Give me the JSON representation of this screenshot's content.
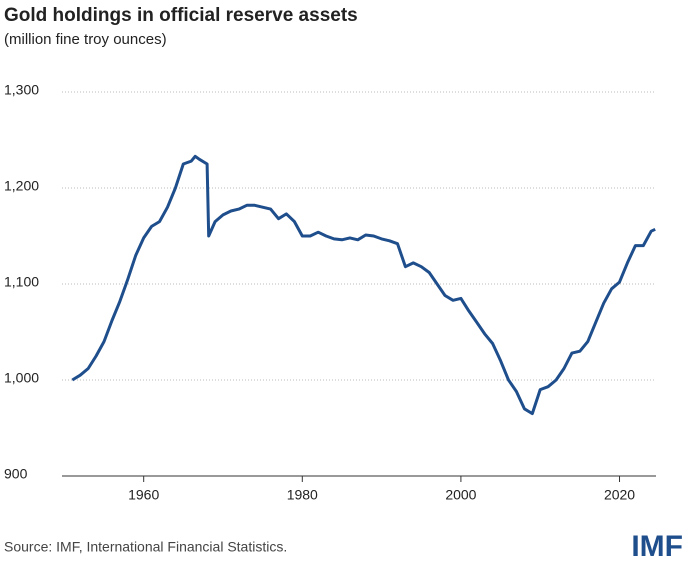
{
  "chart_data": {
    "type": "line",
    "title": "Gold holdings in official reserve assets",
    "subtitle": "(million fine troy ounces)",
    "source": "Source: IMF, International Financial Statistics.",
    "logo": "IMF",
    "x": [
      1951,
      1952,
      1953,
      1954,
      1955,
      1956,
      1957,
      1958,
      1959,
      1960,
      1961,
      1962,
      1963,
      1964,
      1965,
      1966,
      1966.5,
      1967,
      1968,
      1968.2,
      1969,
      1970,
      1971,
      1972,
      1973,
      1974,
      1975,
      1976,
      1977,
      1978,
      1979,
      1980,
      1981,
      1982,
      1983,
      1984,
      1985,
      1986,
      1987,
      1988,
      1989,
      1990,
      1991,
      1992,
      1993,
      1994,
      1995,
      1996,
      1997,
      1998,
      1999,
      2000,
      2001,
      2002,
      2003,
      2004,
      2005,
      2006,
      2007,
      2008,
      2009,
      2010,
      2011,
      2012,
      2013,
      2014,
      2015,
      2016,
      2017,
      2018,
      2019,
      2020,
      2021,
      2022,
      2023,
      2024,
      2024.5
    ],
    "series": [
      {
        "name": "Gold holdings",
        "color": "#1f4e8c",
        "values": [
          1000,
          1005,
          1012,
          1025,
          1040,
          1062,
          1082,
          1105,
          1130,
          1148,
          1160,
          1165,
          1180,
          1200,
          1225,
          1228,
          1233,
          1230,
          1225,
          1150,
          1165,
          1172,
          1176,
          1178,
          1182,
          1182,
          1180,
          1178,
          1168,
          1173,
          1165,
          1150,
          1150,
          1154,
          1150,
          1147,
          1146,
          1148,
          1146,
          1151,
          1150,
          1147,
          1145,
          1142,
          1118,
          1122,
          1118,
          1112,
          1100,
          1088,
          1083,
          1085,
          1072,
          1060,
          1048,
          1038,
          1020,
          1000,
          988,
          970,
          965,
          990,
          993,
          1000,
          1012,
          1028,
          1030,
          1040,
          1060,
          1080,
          1095,
          1102,
          1122,
          1140,
          1140,
          1155,
          1157
        ]
      }
    ],
    "xlim": [
      1949.7,
      2024.6
    ],
    "xticks": [
      1960,
      1980,
      2000,
      2020
    ],
    "ylim": [
      900,
      1300
    ],
    "yticks": [
      900,
      {
        "value": 1000,
        "label": "1,000"
      },
      {
        "value": 1100,
        "label": "1,100"
      },
      {
        "value": 1200,
        "label": "1,200"
      },
      {
        "value": 1300,
        "label": "1,300"
      }
    ],
    "grid": true
  }
}
